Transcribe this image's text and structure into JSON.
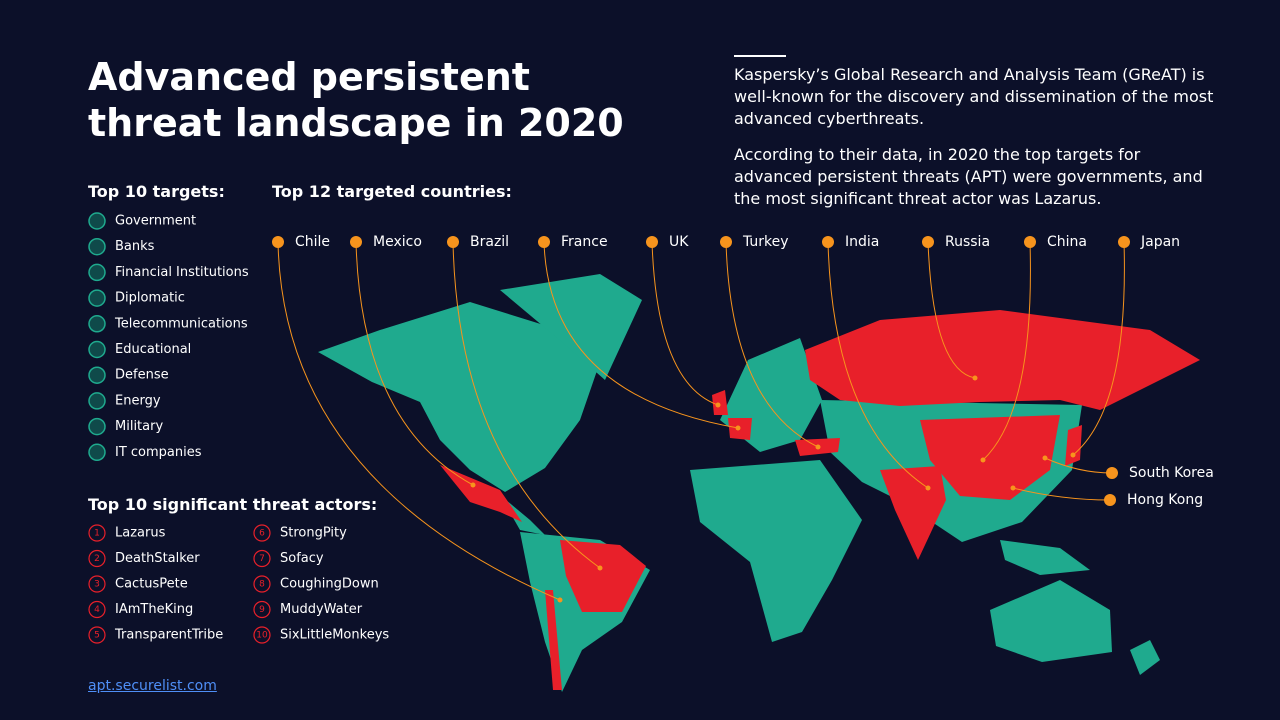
{
  "header": {
    "title_lines": [
      "Advanced persistent",
      "threat landscape in 2020"
    ],
    "intro": [
      "Kaspersky’s Global Research and Analysis Team (GReAT) is well-known for the discovery and dissemination of the most advanced cyberthreats.",
      "According to their data, in 2020 the top targets for advanced persistent threats (APT) were governments, and the most significant threat actor was Lazarus."
    ]
  },
  "targets": {
    "heading": "Top 10 targets:",
    "items": [
      "Government",
      "Banks",
      "Financial Institutions",
      "Diplomatic",
      "Telecommunications",
      "Educational",
      "Defense",
      "Energy",
      "Military",
      "IT companies"
    ]
  },
  "countries": {
    "heading": "Top 12 targeted countries:",
    "items": [
      "Chile",
      "Mexico",
      "Brazil",
      "France",
      "UK",
      "Turkey",
      "India",
      "Russia",
      "China",
      "Japan",
      "South Korea",
      "Hong Kong"
    ]
  },
  "actors": {
    "heading": "Top 10 significant threat actors:",
    "items": [
      {
        "rank": "1",
        "name": "Lazarus"
      },
      {
        "rank": "2",
        "name": "DeathStalker"
      },
      {
        "rank": "3",
        "name": "CactusPete"
      },
      {
        "rank": "4",
        "name": "IAmTheKing"
      },
      {
        "rank": "5",
        "name": "TransparentTribe"
      },
      {
        "rank": "6",
        "name": "StrongPity"
      },
      {
        "rank": "7",
        "name": "Sofacy"
      },
      {
        "rank": "8",
        "name": "CoughingDown"
      },
      {
        "rank": "9",
        "name": "MuddyWater"
      },
      {
        "rank": "10",
        "name": "SixLittleMonkeys"
      }
    ]
  },
  "footer": {
    "link": "apt.securelist.com"
  }
}
